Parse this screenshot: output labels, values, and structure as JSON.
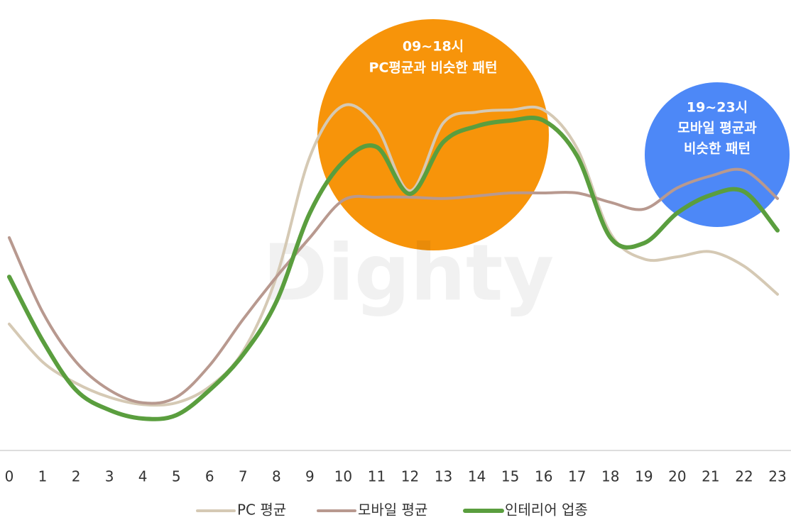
{
  "chart_data": {
    "type": "line",
    "categories": [
      "0",
      "1",
      "2",
      "3",
      "4",
      "5",
      "6",
      "7",
      "8",
      "9",
      "10",
      "11",
      "12",
      "13",
      "14",
      "15",
      "16",
      "17",
      "18",
      "19",
      "20",
      "21",
      "22",
      "23"
    ],
    "ylim": [
      0,
      100
    ],
    "series": [
      {
        "name": "PC 평균",
        "color": "#d5c9b4",
        "values": [
          29.7,
          20.8,
          15.8,
          12.5,
          10.8,
          11.2,
          15,
          23.3,
          40.8,
          69,
          81,
          76,
          61,
          77,
          79.5,
          80,
          80,
          71,
          51,
          45,
          45.5,
          46.7,
          43.3,
          36.7
        ]
      },
      {
        "name": "모바일 평균",
        "color": "#b8998f",
        "values": [
          50,
          32.5,
          20.8,
          14.2,
          11.2,
          12.5,
          20,
          30.8,
          40.8,
          50,
          58.8,
          59.5,
          59.5,
          59.2,
          59.8,
          60.5,
          60.5,
          60.5,
          58.3,
          56.7,
          61.7,
          64.5,
          65.8,
          59.2
        ]
      },
      {
        "name": "인테리어 업종",
        "color": "#5a9e3e",
        "values": [
          40.8,
          25.8,
          14.2,
          9.5,
          7.5,
          8.3,
          14.2,
          22.5,
          35,
          55.8,
          67.8,
          71.3,
          60.3,
          72.5,
          76.2,
          77.5,
          77.5,
          69.2,
          50,
          48.7,
          55.8,
          60,
          60.8,
          51.7
        ]
      }
    ],
    "annotations": [
      {
        "lines": [
          "09~18시",
          "PC평균과 비슷한 패턴"
        ],
        "color": "#f7940a"
      },
      {
        "lines": [
          "19~23시",
          "모바일 평균과",
          "비슷한 패턴"
        ],
        "color": "#4d88f7"
      }
    ],
    "watermark": "Dighty"
  }
}
